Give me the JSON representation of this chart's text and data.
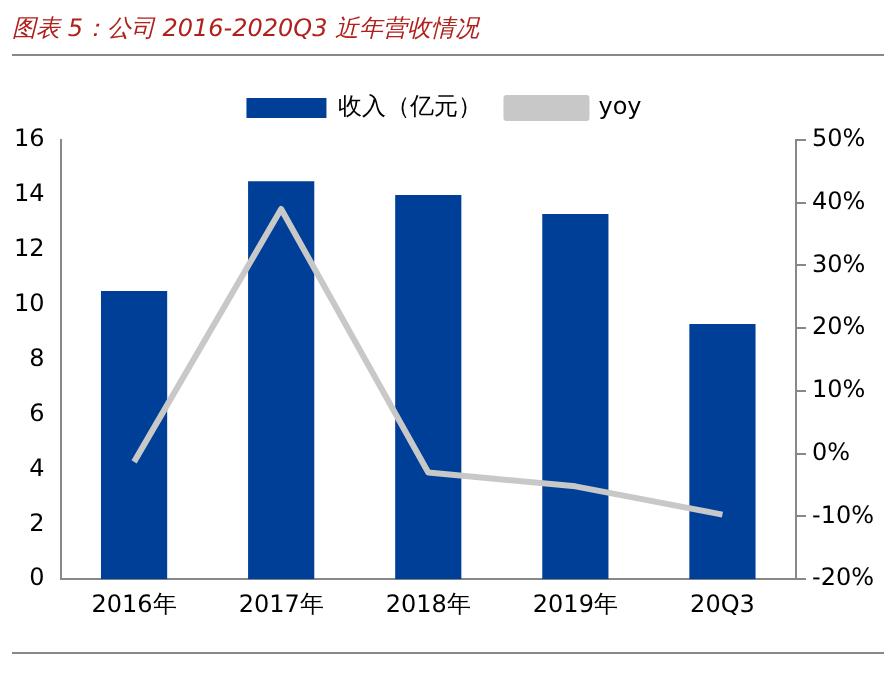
{
  "chart_data": {
    "type": "bar",
    "title": "图表 5：公司 2016-2020Q3 近年营收情况",
    "categories": [
      "2016年",
      "2017年",
      "2018年",
      "2019年",
      "20Q3"
    ],
    "series": [
      {
        "name": "收入（亿元）",
        "color": "#003f98",
        "values": [
          10.5,
          14.5,
          14.0,
          13.3,
          9.3
        ]
      },
      {
        "name": "yoy",
        "type": "line",
        "axis": "y2",
        "color": "#c8c8c8",
        "values": [
          -1.3,
          39,
          -3,
          -5.2,
          -9.7
        ]
      }
    ],
    "ylim": [
      0,
      16
    ],
    "yticks": [
      0,
      2,
      4,
      6,
      8,
      10,
      12,
      14,
      16
    ],
    "y2lim": [
      -20,
      50
    ],
    "y2ticks": [
      {
        "value": -20,
        "label": "-20%"
      },
      {
        "value": -10,
        "label": "-10%"
      },
      {
        "value": 0,
        "label": "0%"
      },
      {
        "value": 10,
        "label": "10%"
      },
      {
        "value": 20,
        "label": "20%"
      },
      {
        "value": 30,
        "label": "30%"
      },
      {
        "value": 40,
        "label": "40%"
      },
      {
        "value": 50,
        "label": "50%"
      }
    ],
    "grid": false,
    "legend": "top",
    "marker": "none",
    "line_style": "solid"
  }
}
